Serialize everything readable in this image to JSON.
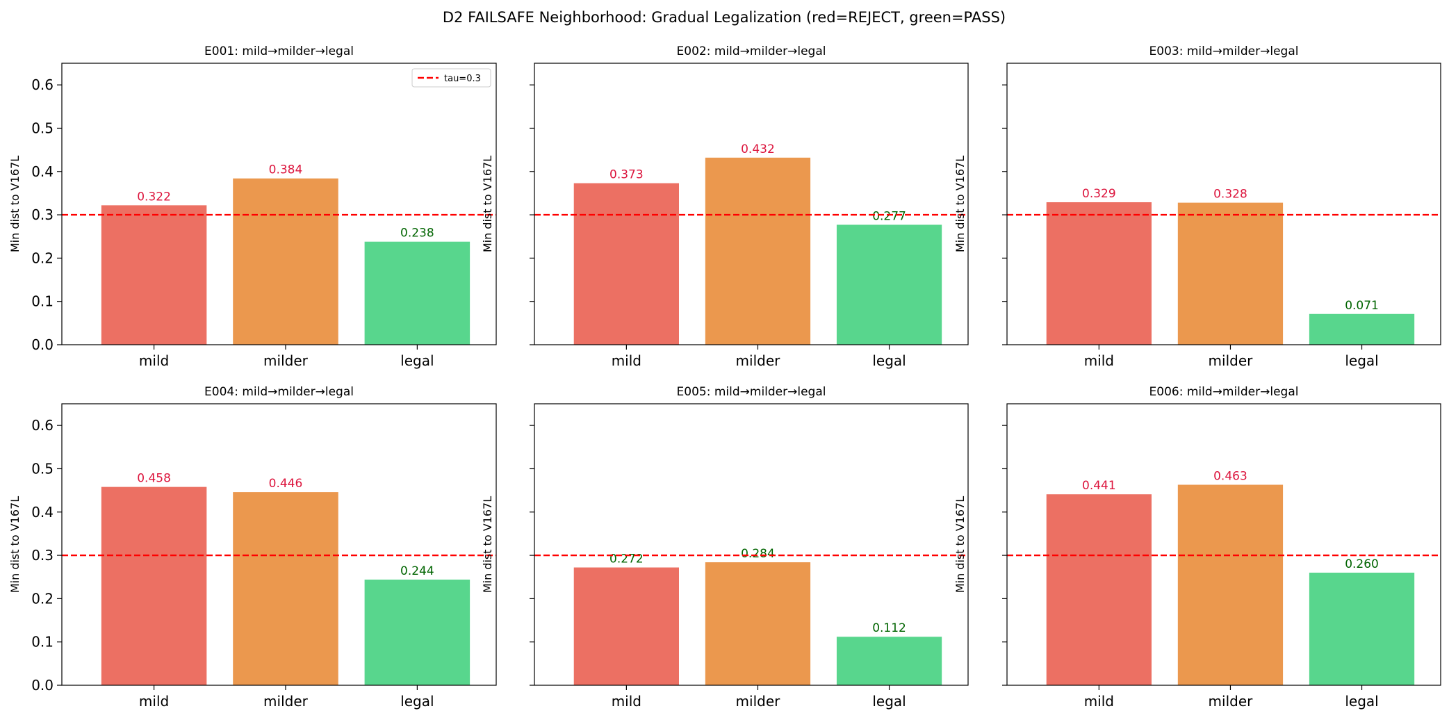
{
  "figure": {
    "title": "D2 FAILSAFE Neighborhood: Gradual Legalization (red=REJECT, green=PASS)"
  },
  "colors": {
    "bar_mild": "#ec7063",
    "bar_milder": "#eb984e",
    "bar_legal": "#58d68d",
    "label_reject": "#dc143c",
    "label_pass": "#006400",
    "threshold_line": "#ff0000"
  },
  "legend": {
    "label": "tau=0.3",
    "panel": 0,
    "location": "upper-right"
  },
  "chart_data": [
    {
      "type": "bar",
      "title": "E001: mild→milder→legal",
      "categories": [
        "mild",
        "milder",
        "legal"
      ],
      "values": [
        0.322,
        0.384,
        0.238
      ],
      "value_labels": [
        "0.322",
        "0.384",
        "0.238"
      ],
      "ylabel": "Min dist to V167L",
      "ylim": [
        0,
        0.65
      ],
      "yticks": [
        "0.0",
        "0.1",
        "0.2",
        "0.3",
        "0.4",
        "0.5",
        "0.6"
      ],
      "show_ytick_labels": true,
      "threshold": 0.3
    },
    {
      "type": "bar",
      "title": "E002: mild→milder→legal",
      "categories": [
        "mild",
        "milder",
        "legal"
      ],
      "values": [
        0.373,
        0.432,
        0.277
      ],
      "value_labels": [
        "0.373",
        "0.432",
        "0.277"
      ],
      "ylabel": "Min dist to V167L",
      "ylim": [
        0,
        0.65
      ],
      "yticks": [
        "0.0",
        "0.1",
        "0.2",
        "0.3",
        "0.4",
        "0.5",
        "0.6"
      ],
      "show_ytick_labels": false,
      "threshold": 0.3
    },
    {
      "type": "bar",
      "title": "E003: mild→milder→legal",
      "categories": [
        "mild",
        "milder",
        "legal"
      ],
      "values": [
        0.329,
        0.328,
        0.071
      ],
      "value_labels": [
        "0.329",
        "0.328",
        "0.071"
      ],
      "ylabel": "Min dist to V167L",
      "ylim": [
        0,
        0.65
      ],
      "yticks": [
        "0.0",
        "0.1",
        "0.2",
        "0.3",
        "0.4",
        "0.5",
        "0.6"
      ],
      "show_ytick_labels": false,
      "threshold": 0.3
    },
    {
      "type": "bar",
      "title": "E004: mild→milder→legal",
      "categories": [
        "mild",
        "milder",
        "legal"
      ],
      "values": [
        0.458,
        0.446,
        0.244
      ],
      "value_labels": [
        "0.458",
        "0.446",
        "0.244"
      ],
      "ylabel": "Min dist to V167L",
      "ylim": [
        0,
        0.65
      ],
      "yticks": [
        "0.0",
        "0.1",
        "0.2",
        "0.3",
        "0.4",
        "0.5",
        "0.6"
      ],
      "show_ytick_labels": true,
      "threshold": 0.3
    },
    {
      "type": "bar",
      "title": "E005: mild→milder→legal",
      "categories": [
        "mild",
        "milder",
        "legal"
      ],
      "values": [
        0.272,
        0.284,
        0.112
      ],
      "value_labels": [
        "0.272",
        "0.284",
        "0.112"
      ],
      "ylabel": "Min dist to V167L",
      "ylim": [
        0,
        0.65
      ],
      "yticks": [
        "0.0",
        "0.1",
        "0.2",
        "0.3",
        "0.4",
        "0.5",
        "0.6"
      ],
      "show_ytick_labels": false,
      "threshold": 0.3
    },
    {
      "type": "bar",
      "title": "E006: mild→milder→legal",
      "categories": [
        "mild",
        "milder",
        "legal"
      ],
      "values": [
        0.441,
        0.463,
        0.26
      ],
      "value_labels": [
        "0.441",
        "0.463",
        "0.260"
      ],
      "ylabel": "Min dist to V167L",
      "ylim": [
        0,
        0.65
      ],
      "yticks": [
        "0.0",
        "0.1",
        "0.2",
        "0.3",
        "0.4",
        "0.5",
        "0.6"
      ],
      "show_ytick_labels": false,
      "threshold": 0.3
    }
  ]
}
